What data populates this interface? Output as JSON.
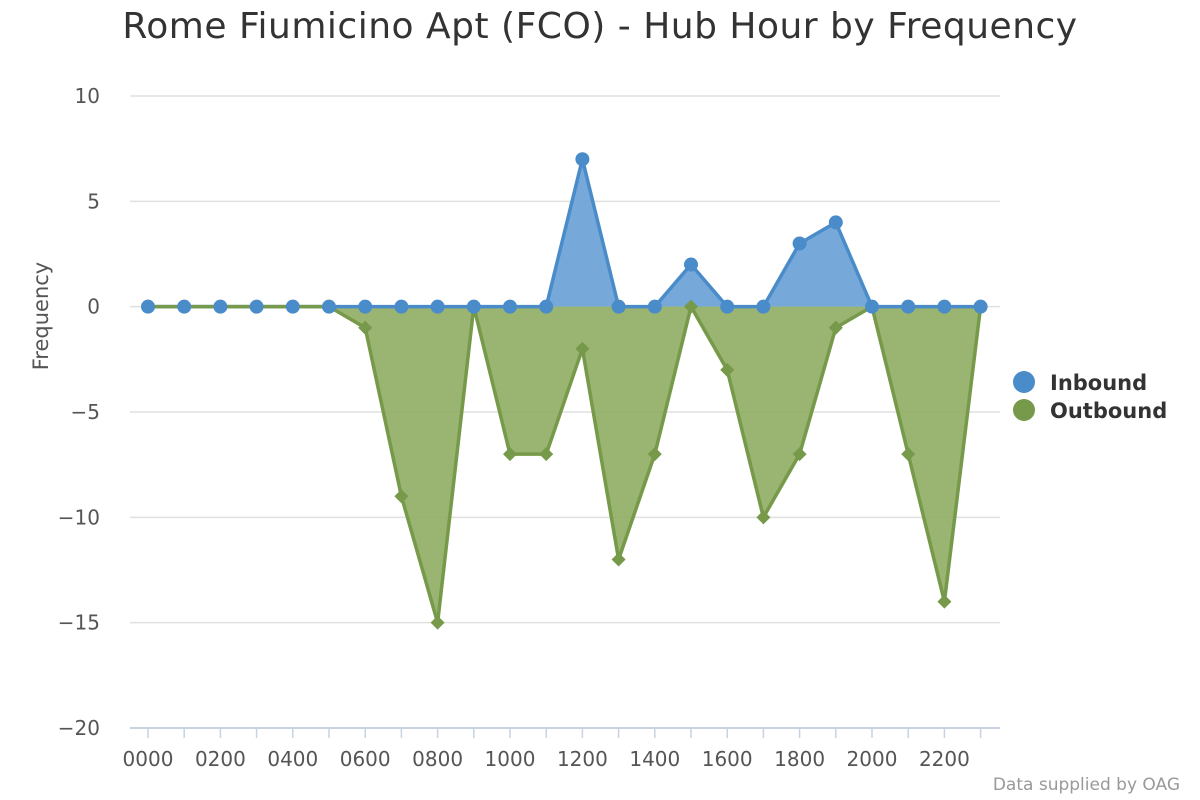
{
  "title": "Rome Fiumicino Apt (FCO) - Hub Hour by Frequency",
  "credit": "Data supplied by OAG",
  "chart_data": {
    "type": "area",
    "title": "Rome Fiumicino Apt (FCO) - Hub Hour by Frequency",
    "xlabel": "",
    "ylabel": "Frequency",
    "ylim": [
      -20,
      10
    ],
    "yticks": [
      10,
      5,
      0,
      -5,
      -10,
      -15,
      -20
    ],
    "ytick_labels": [
      "10",
      "5",
      "0",
      "−5",
      "−10",
      "−15",
      "−20"
    ],
    "grid": true,
    "legend_position": "right",
    "categories": [
      "0000",
      "0100",
      "0200",
      "0300",
      "0400",
      "0500",
      "0600",
      "0700",
      "0800",
      "0900",
      "1000",
      "1100",
      "1200",
      "1300",
      "1400",
      "1500",
      "1600",
      "1700",
      "1800",
      "1900",
      "2000",
      "2100",
      "2200",
      "2300"
    ],
    "xtick_labels": [
      "0000",
      "0200",
      "0400",
      "0600",
      "0800",
      "1000",
      "1200",
      "1400",
      "1600",
      "1800",
      "2000",
      "2200"
    ],
    "series": [
      {
        "name": "Inbound",
        "color": "#4a8bc9",
        "fill": "#6fa3d8",
        "marker": "circle",
        "values": [
          0,
          0,
          0,
          0,
          0,
          0,
          0,
          0,
          0,
          0,
          0,
          0,
          7,
          0,
          0,
          2,
          0,
          0,
          3,
          4,
          0,
          0,
          0,
          0
        ]
      },
      {
        "name": "Outbound",
        "color": "#76994a",
        "fill": "#8fac62",
        "marker": "diamond",
        "values": [
          0,
          0,
          0,
          0,
          0,
          0,
          -1,
          -9,
          -15,
          0,
          -7,
          -7,
          -2,
          -12,
          -7,
          0,
          -3,
          -10,
          -7,
          -1,
          0,
          -7,
          -14,
          0
        ]
      }
    ]
  }
}
